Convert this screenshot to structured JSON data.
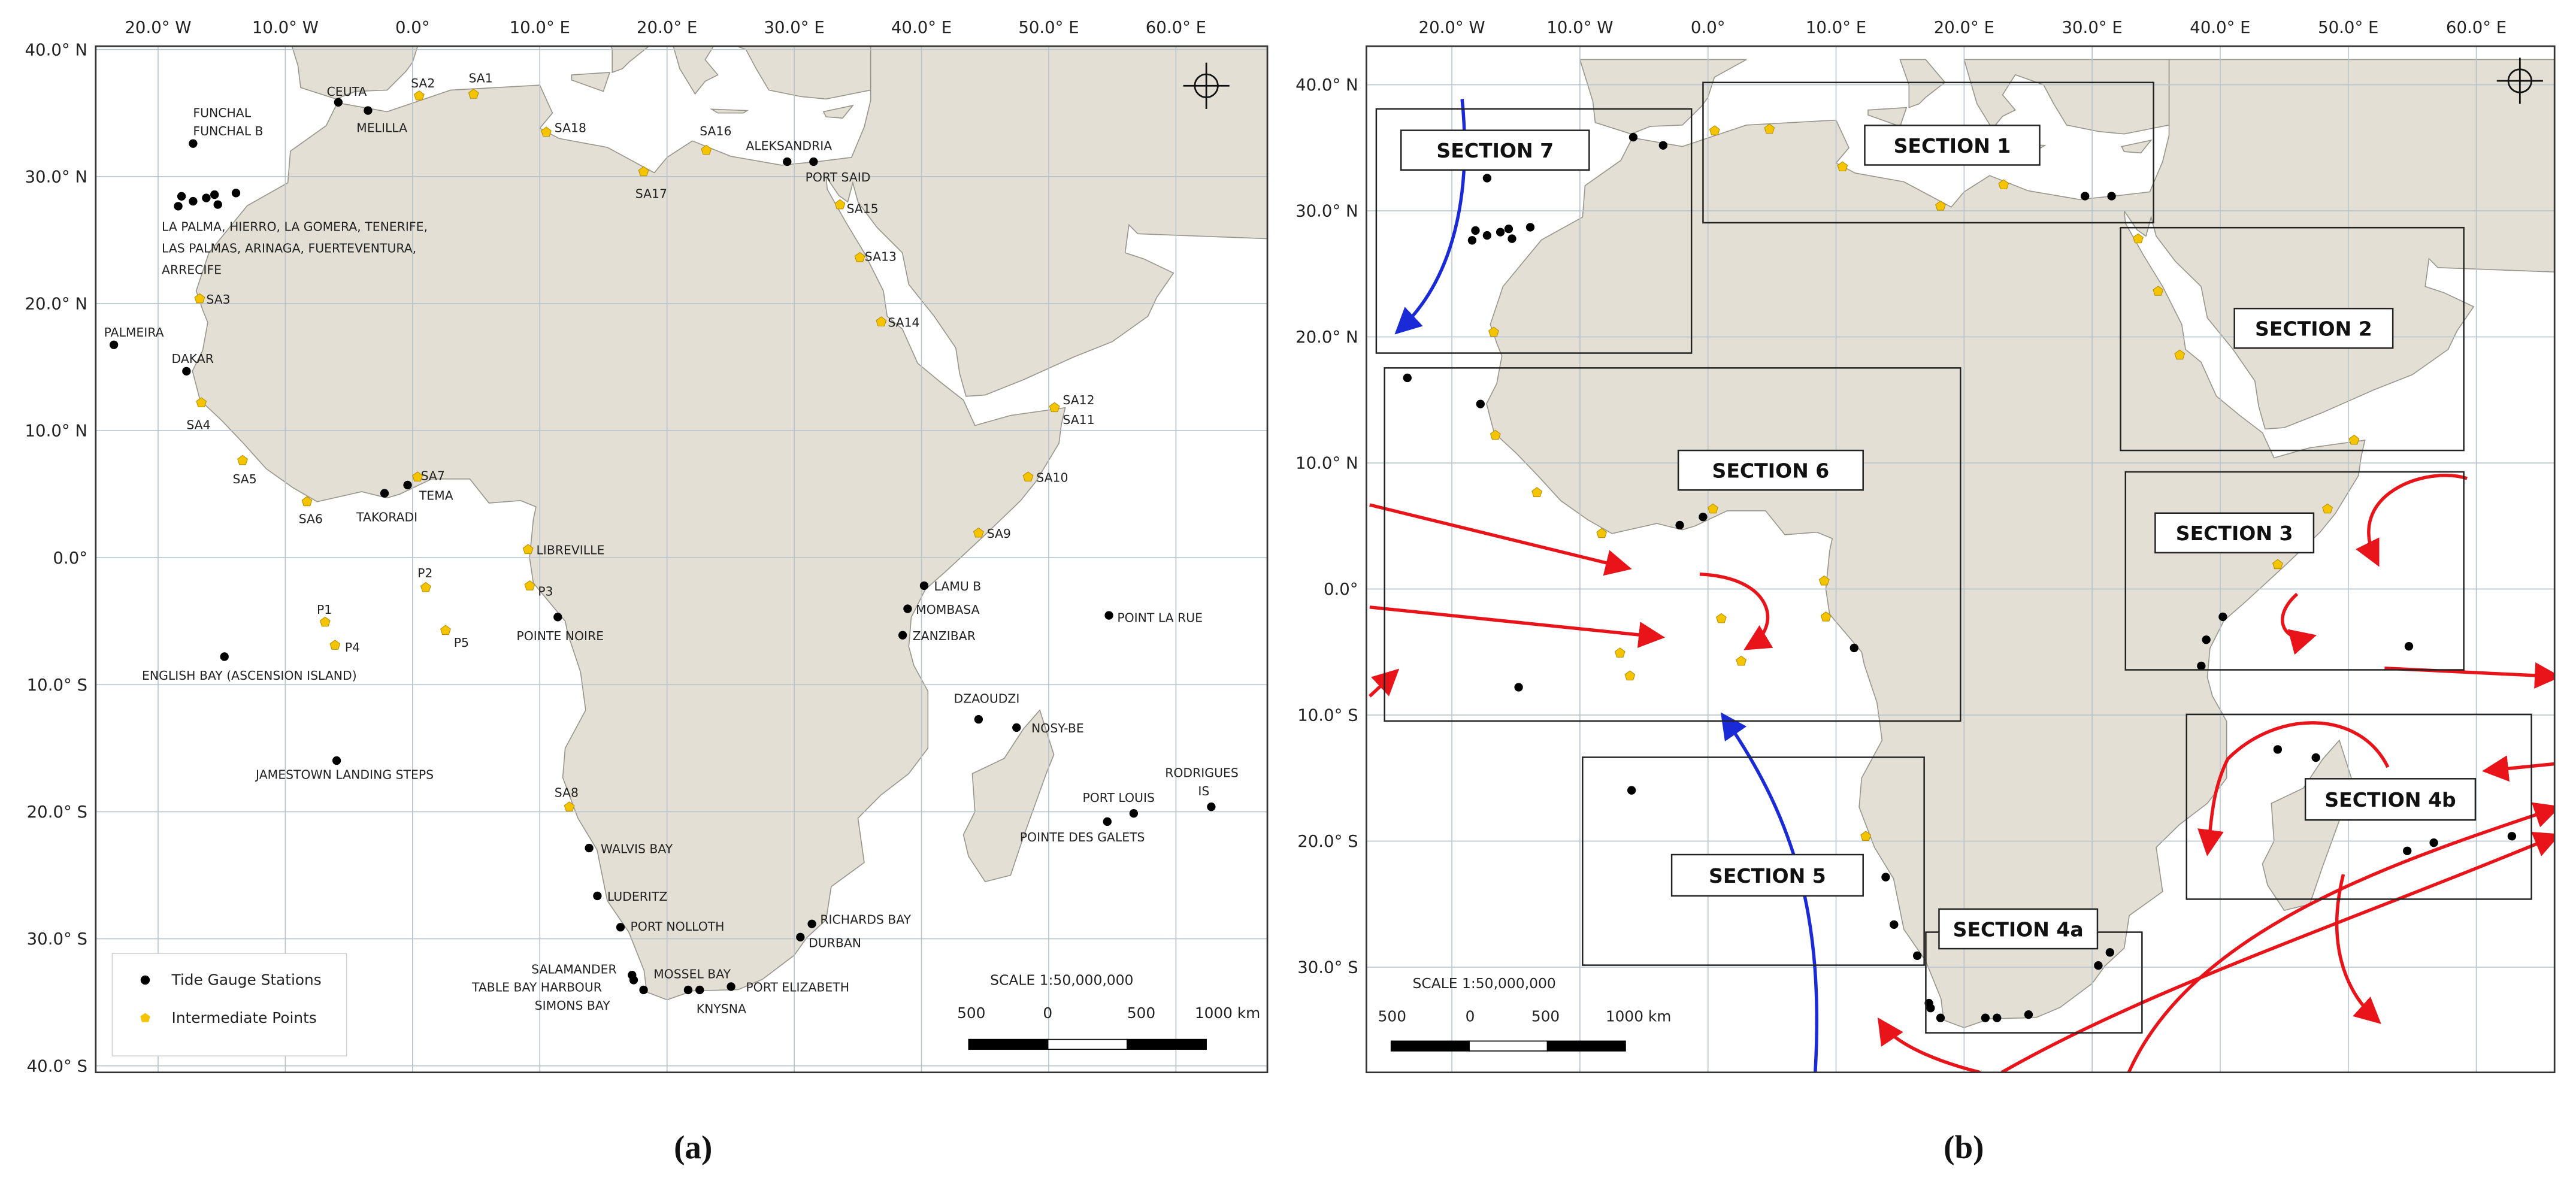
{
  "panels": [
    {
      "label": "(a)",
      "x_axis": [
        "20.0° W",
        "10.0° W",
        "0.0°",
        "10.0° E",
        "20.0° E",
        "30.0° E",
        "40.0° E",
        "50.0° E",
        "60.0° E"
      ],
      "y_axis": [
        "40.0° N",
        "30.0° N",
        "20.0° N",
        "10.0° N",
        "0.0°",
        "10.0° S",
        "20.0° S",
        "30.0° S",
        "40.0° S"
      ],
      "stations": [
        "FUNCHAL",
        "FUNCHAL B",
        "CEUTA",
        "MELILLA",
        "SA2",
        "SA1",
        "SA18",
        "SA16",
        "ALEKSANDRIA",
        "PORT SAID",
        "SA17",
        "SA15",
        "SA13",
        "SA14",
        "LA PALMA, HIERRO, LA GOMERA, TENERIFE,",
        "LAS PALMAS, ARINAGA, FUERTEVENTURA,",
        "ARRECIFE",
        "SA3",
        "PALMEIRA",
        "DAKAR",
        "SA4",
        "SA5",
        "SA6",
        "SA7",
        "TEMA",
        "TAKORADI",
        "SA12",
        "SA11",
        "SA10",
        "SA9",
        "LIBREVILLE",
        "P2",
        "P3",
        "POINTE NOIRE",
        "LAMU B",
        "MOMBASA",
        "ZANZIBAR",
        "POINT LA RUE",
        "P1",
        "P4",
        "P5",
        "ENGLISH BAY (ASCENSION ISLAND)",
        "DZAOUDZI",
        "NOSY-BE",
        "JAMESTOWN LANDING STEPS",
        "RODRIGUES",
        "IS",
        "PORT LOUIS",
        "POINTE DES GALETS",
        "SA8",
        "WALVIS BAY",
        "LUDERITZ",
        "PORT NOLLOTH",
        "RICHARDS BAY",
        "DURBAN",
        "SALAMANDER",
        "TABLE BAY HARBOUR",
        "MOSSEL BAY",
        "SIMONS BAY",
        "PORT ELIZABETH",
        "KNYSNA"
      ],
      "legend": [
        "Tide Gauge Stations",
        "Intermediate Points"
      ],
      "scale": {
        "title": "SCALE 1:50,000,000",
        "labels": [
          "500",
          "0",
          "500",
          "1000 km"
        ]
      }
    },
    {
      "label": "(b)",
      "x_axis": [
        "20.0° W",
        "10.0° W",
        "0.0°",
        "10.0° E",
        "20.0° E",
        "30.0° E",
        "40.0° E",
        "50.0° E",
        "60.0° E"
      ],
      "y_axis": [
        "40.0° N",
        "30.0° N",
        "20.0° N",
        "10.0° N",
        "0.0°",
        "10.0° S",
        "20.0° S",
        "30.0° S"
      ],
      "sections": [
        "SECTION 7",
        "SECTION 1",
        "SECTION 2",
        "SECTION 6",
        "SECTION 3",
        "SECTION 4b",
        "SECTION 5",
        "SECTION 4a"
      ],
      "scale": {
        "title": "SCALE 1:50,000,000",
        "labels": [
          "500",
          "0",
          "500",
          "1000 km"
        ]
      }
    }
  ]
}
